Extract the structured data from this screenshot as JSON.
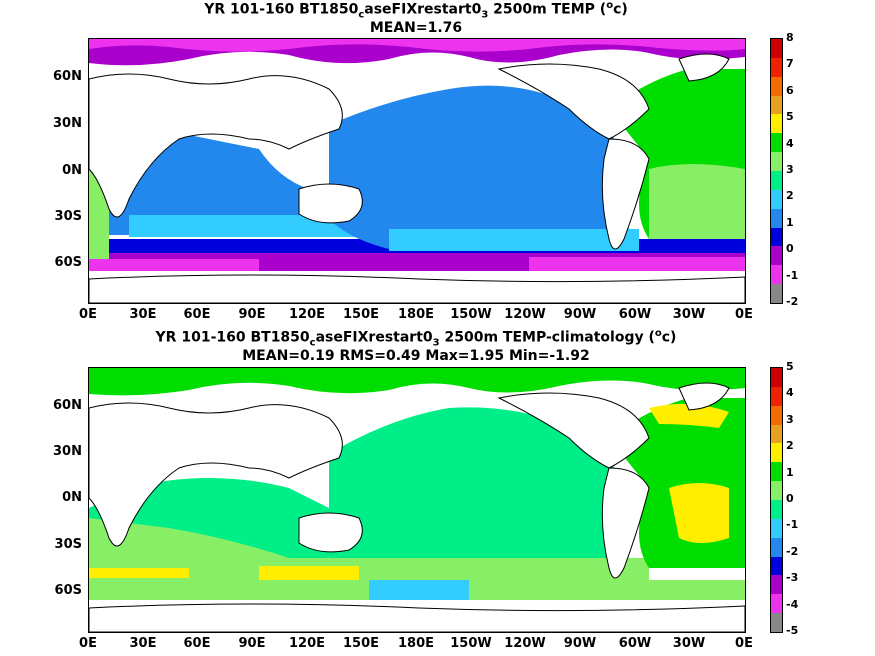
{
  "panel1": {
    "title_prefix": "YR 101-160 BT1850",
    "title_sub1": "c",
    "title_mid": "aseFIXrestart0",
    "title_sub2": "3",
    "title_suffix": " 2500m TEMP (",
    "title_sup": "o",
    "title_end": "c)",
    "stats": "MEAN=1.76",
    "lat_labels": [
      "60N",
      "30N",
      "0N",
      "30S",
      "60S"
    ],
    "lon_labels": [
      "0E",
      "30E",
      "60E",
      "90E",
      "120E",
      "150E",
      "180E",
      "150W",
      "120W",
      "90W",
      "60W",
      "30W",
      "0E"
    ],
    "colorbar_labels": [
      "8",
      "7",
      "6",
      "5",
      "4",
      "3",
      "2",
      "1",
      "0",
      "-1",
      "-2"
    ],
    "colorbar_colors": [
      "#cc0000",
      "#ee2200",
      "#f26a00",
      "#e8a020",
      "#ffee00",
      "#00dd00",
      "#88ee66",
      "#00ee88",
      "#33ccff",
      "#2288ee",
      "#0000dd",
      "#aa00cc",
      "#ee33ee",
      "#888888"
    ]
  },
  "panel2": {
    "title_prefix": "YR 101-160 BT1850",
    "title_sub1": "c",
    "title_mid": "aseFIXrestart0",
    "title_sub2": "3",
    "title_suffix": " 2500m TEMP-climatology (",
    "title_sup": "o",
    "title_end": "c)",
    "stats": "MEAN=0.19   RMS=0.49   Max=1.95   Min=-1.92",
    "lat_labels": [
      "60N",
      "30N",
      "0N",
      "30S",
      "60S"
    ],
    "lon_labels": [
      "0E",
      "30E",
      "60E",
      "90E",
      "120E",
      "150E",
      "180E",
      "150W",
      "120W",
      "90W",
      "60W",
      "30W",
      "0E"
    ],
    "colorbar_labels": [
      "5",
      "4",
      "3",
      "2",
      "1",
      "0",
      "-1",
      "-2",
      "-3",
      "-4",
      "-5"
    ],
    "colorbar_colors": [
      "#cc0000",
      "#ee2200",
      "#f26a00",
      "#e8a020",
      "#ffee00",
      "#00dd00",
      "#88ee66",
      "#00ee88",
      "#33ccff",
      "#2288ee",
      "#0000dd",
      "#aa00cc",
      "#ee33ee",
      "#888888"
    ]
  }
}
